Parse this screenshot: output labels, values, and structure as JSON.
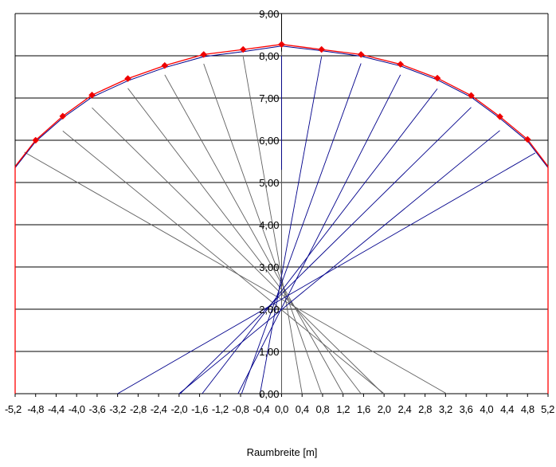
{
  "chart_data": {
    "type": "line",
    "title": "",
    "xlabel": "Raumbreite [m]",
    "ylabel": "",
    "xlim": [
      -5.2,
      5.2
    ],
    "ylim": [
      0,
      9
    ],
    "grid": true,
    "x_tick_labels": [
      "-5,2",
      "-4,8",
      "-4,4",
      "-4,0",
      "-3,6",
      "-3,2",
      "-2,8",
      "-2,4",
      "-2,0",
      "-1,6",
      "-1,2",
      "-0,8",
      "-0,4",
      "0,0",
      "0,4",
      "0,8",
      "1,2",
      "1,6",
      "2,0",
      "2,4",
      "2,8",
      "3,2",
      "3,6",
      "4,0",
      "4,4",
      "4,8",
      "5,2"
    ],
    "x_tick_values": [
      -5.2,
      -4.8,
      -4.4,
      -4.0,
      -3.6,
      -3.2,
      -2.8,
      -2.4,
      -2.0,
      -1.6,
      -1.2,
      -0.8,
      -0.4,
      0.0,
      0.4,
      0.8,
      1.2,
      1.6,
      2.0,
      2.4,
      2.8,
      3.2,
      3.6,
      4.0,
      4.4,
      4.8,
      5.2
    ],
    "y_tick_labels": [
      "0,00",
      "1,00",
      "2,00",
      "3,00",
      "4,00",
      "5,00",
      "6,00",
      "7,00",
      "8,00",
      "9,00"
    ],
    "y_tick_values": [
      0,
      1,
      2,
      3,
      4,
      5,
      6,
      7,
      8,
      9
    ],
    "colors": {
      "red": "#ff0000",
      "blue": "#00008b",
      "gray": "#606060",
      "diamond": "#ee0000"
    },
    "red_wall_curve": {
      "x": [
        -5.2,
        -5.2,
        -4.8,
        -4.27,
        -3.7,
        -3.0,
        -2.28,
        -1.52,
        -0.75,
        0.0,
        0.78,
        1.55,
        2.32,
        3.04,
        3.7,
        4.26,
        4.8,
        5.2,
        5.2
      ],
      "y": [
        0.0,
        5.38,
        6.0,
        6.57,
        7.07,
        7.46,
        7.77,
        8.03,
        8.15,
        8.27,
        8.15,
        8.03,
        7.8,
        7.47,
        7.06,
        6.56,
        6.02,
        5.38,
        0.0
      ]
    },
    "blue_curve": {
      "x": [
        -5.2,
        -4.8,
        -4.27,
        -3.7,
        -3.0,
        -2.28,
        -1.52,
        -0.75,
        0.0,
        0.78,
        1.55,
        2.32,
        3.04,
        3.7,
        4.26,
        4.8,
        5.2
      ],
      "y": [
        5.35,
        5.97,
        6.53,
        7.02,
        7.41,
        7.72,
        7.98,
        8.1,
        8.23,
        8.12,
        7.99,
        7.76,
        7.43,
        7.02,
        6.52,
        5.98,
        5.35
      ]
    },
    "diamonds": {
      "x": [
        -4.8,
        -4.27,
        -3.7,
        -3.0,
        -2.28,
        -1.52,
        -0.75,
        0.0,
        0.78,
        1.55,
        2.32,
        3.04,
        3.7,
        4.26,
        4.8
      ],
      "y": [
        6.0,
        6.57,
        7.07,
        7.46,
        7.77,
        8.03,
        8.15,
        8.27,
        8.15,
        8.03,
        7.8,
        7.47,
        7.06,
        6.56,
        6.02
      ]
    },
    "gray_rays": [
      {
        "x": [
          -5.02,
          3.22
        ],
        "y": [
          5.72,
          0.0
        ]
      },
      {
        "x": [
          -4.27,
          2.0
        ],
        "y": [
          6.22,
          0.0
        ]
      },
      {
        "x": [
          -3.7,
          1.98
        ],
        "y": [
          6.77,
          0.0
        ]
      },
      {
        "x": [
          -3.0,
          1.55
        ],
        "y": [
          7.23,
          0.0
        ]
      },
      {
        "x": [
          -2.28,
          1.2
        ],
        "y": [
          7.55,
          0.0
        ]
      },
      {
        "x": [
          -1.52,
          0.78
        ],
        "y": [
          7.81,
          0.0
        ]
      },
      {
        "x": [
          -0.75,
          0.4
        ],
        "y": [
          7.98,
          0.0
        ]
      },
      {
        "x": [
          0.0,
          0.0
        ],
        "y": [
          8.1,
          0.0
        ]
      }
    ],
    "blue_rays": [
      {
        "x": [
          4.95,
          -3.2
        ],
        "y": [
          5.7,
          0.0
        ]
      },
      {
        "x": [
          4.26,
          -2.0
        ],
        "y": [
          6.23,
          0.0
        ]
      },
      {
        "x": [
          3.7,
          -1.98
        ],
        "y": [
          6.78,
          0.0
        ]
      },
      {
        "x": [
          3.04,
          -1.55
        ],
        "y": [
          7.22,
          0.0
        ]
      },
      {
        "x": [
          2.32,
          -0.85
        ],
        "y": [
          7.55,
          0.0
        ]
      },
      {
        "x": [
          1.55,
          -0.78
        ],
        "y": [
          7.82,
          0.0
        ]
      },
      {
        "x": [
          0.78,
          -0.42
        ],
        "y": [
          7.98,
          0.0
        ]
      },
      {
        "x": [
          0.0,
          0.0
        ],
        "y": [
          8.0,
          5.3
        ]
      }
    ]
  }
}
